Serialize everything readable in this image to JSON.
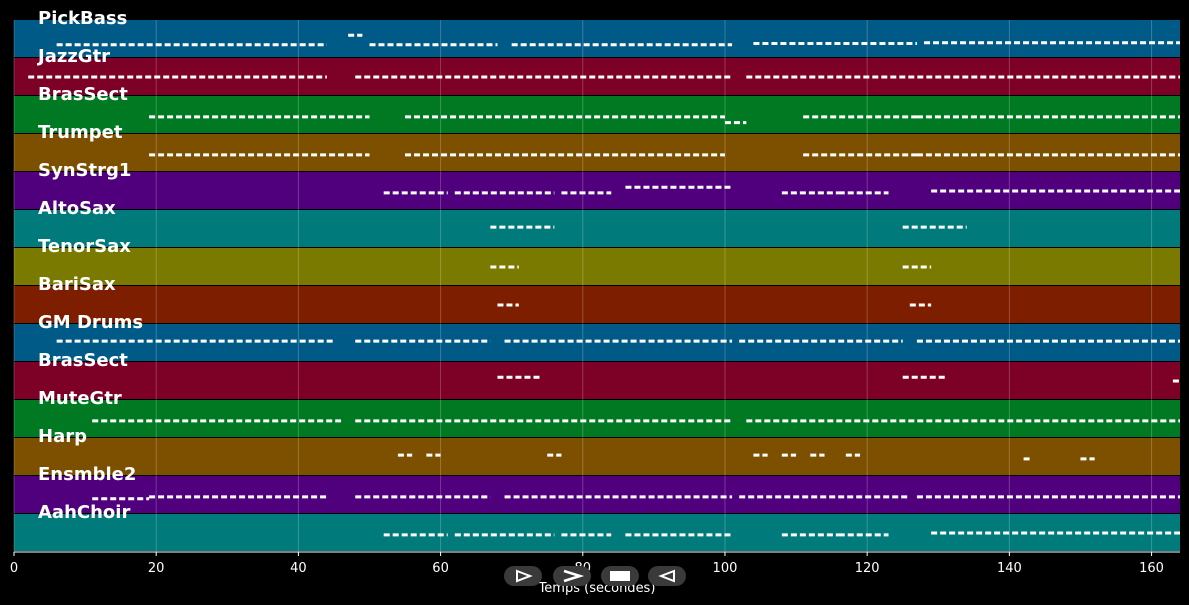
{
  "chart_data": {
    "type": "piano-roll",
    "title": "",
    "xlabel": "Temps (secondes)",
    "ylabel": "",
    "xlim": [
      0,
      164
    ],
    "xticks": [
      0,
      20,
      40,
      60,
      80,
      100,
      120,
      140,
      160
    ],
    "grid": true,
    "tracks": [
      {
        "name": "PickBass",
        "color": "#005a87",
        "segments": [
          [
            6,
            44,
            0.65
          ],
          [
            47,
            49,
            0.4
          ],
          [
            50,
            68,
            0.65
          ],
          [
            70,
            101,
            0.65
          ],
          [
            104,
            127,
            0.62
          ],
          [
            128,
            164,
            0.6
          ]
        ]
      },
      {
        "name": "JazzGtr",
        "color": "#7d0027",
        "segments": [
          [
            2,
            44,
            0.5
          ],
          [
            48,
            101,
            0.5
          ],
          [
            103,
            164,
            0.5
          ]
        ]
      },
      {
        "name": "BrasSect",
        "color": "#007a22",
        "segments": [
          [
            19,
            50,
            0.55
          ],
          [
            55,
            74,
            0.55
          ],
          [
            74,
            100,
            0.55
          ],
          [
            100,
            103,
            0.7
          ],
          [
            111,
            127,
            0.55
          ],
          [
            127,
            164,
            0.55
          ]
        ]
      },
      {
        "name": "Trumpet",
        "color": "#7d5000",
        "segments": [
          [
            19,
            50,
            0.55
          ],
          [
            55,
            74,
            0.55
          ],
          [
            74,
            100,
            0.55
          ],
          [
            111,
            127,
            0.55
          ],
          [
            127,
            164,
            0.55
          ]
        ]
      },
      {
        "name": "SynStrg1",
        "color": "#50007d",
        "segments": [
          [
            52,
            61,
            0.55
          ],
          [
            62,
            76,
            0.55
          ],
          [
            77,
            84,
            0.55
          ],
          [
            86,
            101,
            0.4
          ],
          [
            108,
            116,
            0.55
          ],
          [
            116,
            123,
            0.55
          ],
          [
            129,
            164,
            0.5
          ]
        ]
      },
      {
        "name": "AltoSax",
        "color": "#007a7a",
        "segments": [
          [
            67,
            76,
            0.45
          ],
          [
            125,
            134,
            0.45
          ]
        ]
      },
      {
        "name": "TenorSax",
        "color": "#7a7a00",
        "segments": [
          [
            67,
            71,
            0.5
          ],
          [
            125,
            129,
            0.5
          ]
        ]
      },
      {
        "name": "BariSax",
        "color": "#7d1e00",
        "segments": [
          [
            68,
            71,
            0.5
          ],
          [
            126,
            129,
            0.5
          ]
        ]
      },
      {
        "name": "GM Drums",
        "color": "#005a87",
        "segments": [
          [
            6,
            45,
            0.45
          ],
          [
            48,
            67,
            0.45
          ],
          [
            69,
            101,
            0.45
          ],
          [
            102,
            125,
            0.45
          ],
          [
            127,
            164,
            0.45
          ]
        ]
      },
      {
        "name": "BrasSect",
        "color": "#7d0027",
        "segments": [
          [
            68,
            74,
            0.4
          ],
          [
            125,
            131,
            0.4
          ],
          [
            163,
            164,
            0.5
          ]
        ]
      },
      {
        "name": "MuteGtr",
        "color": "#007a22",
        "segments": [
          [
            11,
            46,
            0.55
          ],
          [
            48,
            101,
            0.55
          ],
          [
            103,
            164,
            0.55
          ]
        ]
      },
      {
        "name": "Harp",
        "color": "#7d5000",
        "segments": [
          [
            54,
            56,
            0.45
          ],
          [
            58,
            60,
            0.45
          ],
          [
            75,
            77,
            0.45
          ],
          [
            104,
            106,
            0.45
          ],
          [
            108,
            110,
            0.45
          ],
          [
            112,
            114,
            0.45
          ],
          [
            117,
            119,
            0.45
          ],
          [
            142,
            143,
            0.55
          ],
          [
            150,
            152,
            0.55
          ]
        ]
      },
      {
        "name": "Ensmble2",
        "color": "#50007d",
        "segments": [
          [
            11,
            19,
            0.6
          ],
          [
            19,
            44,
            0.55
          ],
          [
            48,
            67,
            0.55
          ],
          [
            69,
            101,
            0.55
          ],
          [
            102,
            126,
            0.55
          ],
          [
            127,
            164,
            0.55
          ]
        ]
      },
      {
        "name": "AahChoir",
        "color": "#007a7a",
        "segments": [
          [
            52,
            61,
            0.55
          ],
          [
            62,
            76,
            0.55
          ],
          [
            77,
            84,
            0.55
          ],
          [
            86,
            101,
            0.55
          ],
          [
            108,
            116,
            0.55
          ],
          [
            116,
            123,
            0.55
          ],
          [
            129,
            164,
            0.5
          ]
        ]
      }
    ]
  },
  "controls": {
    "play": "play-icon",
    "fast_forward": "fast-forward-icon",
    "stop": "stop-icon",
    "rewind": "rewind-icon"
  }
}
